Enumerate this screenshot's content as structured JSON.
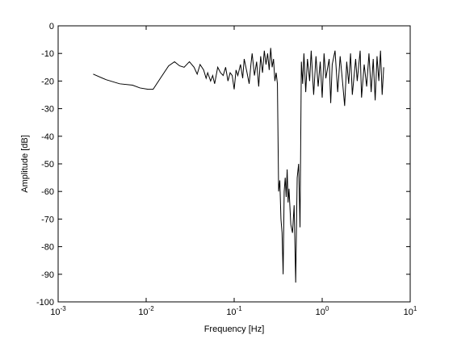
{
  "chart_data": {
    "type": "line",
    "xlabel": "Frequency [Hz]",
    "ylabel": "Amplitude [dB]",
    "xscale": "log",
    "color": "#000000",
    "xlim": [
      0.001,
      10
    ],
    "ylim": [
      -100,
      0
    ],
    "xticks": [
      {
        "value": 0.001,
        "label": "10^-3"
      },
      {
        "value": 0.01,
        "label": "10^-2"
      },
      {
        "value": 0.1,
        "label": "10^-1"
      },
      {
        "value": 1,
        "label": "10^0"
      },
      {
        "value": 10,
        "label": "10^1"
      }
    ],
    "yticks": [
      0,
      -10,
      -20,
      -30,
      -40,
      -50,
      -60,
      -70,
      -80,
      -90,
      -100
    ],
    "x": [
      0.0025,
      0.0035,
      0.005,
      0.007,
      0.0085,
      0.0105,
      0.012,
      0.0145,
      0.018,
      0.021,
      0.024,
      0.027,
      0.031,
      0.035,
      0.038,
      0.041,
      0.045,
      0.048,
      0.05,
      0.054,
      0.057,
      0.06,
      0.065,
      0.07,
      0.075,
      0.08,
      0.085,
      0.09,
      0.095,
      0.1,
      0.105,
      0.11,
      0.118,
      0.125,
      0.13,
      0.14,
      0.148,
      0.155,
      0.16,
      0.17,
      0.18,
      0.19,
      0.2,
      0.21,
      0.22,
      0.23,
      0.24,
      0.25,
      0.26,
      0.27,
      0.28,
      0.29,
      0.3,
      0.31,
      0.32,
      0.33,
      0.34,
      0.35,
      0.36,
      0.37,
      0.38,
      0.39,
      0.4,
      0.41,
      0.42,
      0.44,
      0.46,
      0.48,
      0.5,
      0.52,
      0.54,
      0.56,
      0.58,
      0.6,
      0.62,
      0.65,
      0.68,
      0.72,
      0.75,
      0.8,
      0.85,
      0.9,
      0.95,
      1.0,
      1.05,
      1.1,
      1.2,
      1.25,
      1.3,
      1.4,
      1.5,
      1.6,
      1.7,
      1.8,
      1.9,
      2.0,
      2.1,
      2.2,
      2.4,
      2.5,
      2.7,
      2.8,
      3.0,
      3.2,
      3.4,
      3.6,
      3.8,
      4.0,
      4.2,
      4.4,
      4.6,
      4.8,
      5.0
    ],
    "values": [
      -17.5,
      -19.5,
      -21,
      -21.5,
      -22.5,
      -23,
      -23,
      -19,
      -14.5,
      -13,
      -14.5,
      -15,
      -13,
      -15,
      -17.5,
      -14,
      -16,
      -19,
      -17,
      -20,
      -18,
      -21,
      -15,
      -17,
      -18,
      -15,
      -20,
      -17,
      -18,
      -23,
      -16,
      -18,
      -14,
      -19,
      -12,
      -17,
      -21,
      -14,
      -10,
      -18,
      -13,
      -22,
      -11,
      -17,
      -9,
      -14,
      -10,
      -16,
      -8,
      -15,
      -12,
      -20,
      -17,
      -21,
      -60,
      -56,
      -70,
      -75,
      -90,
      -60,
      -55,
      -62,
      -52,
      -64,
      -59,
      -72,
      -75,
      -65,
      -93,
      -55,
      -50,
      -73,
      -13,
      -21,
      -10,
      -24,
      -12,
      -20,
      -9,
      -25,
      -11,
      -22,
      -13,
      -26,
      -10,
      -19,
      -12,
      -28,
      -14,
      -9,
      -24,
      -11,
      -20,
      -29,
      -13,
      -21,
      -10,
      -25,
      -12,
      -20,
      -9,
      -26,
      -14,
      -22,
      -10,
      -24,
      -12,
      -27,
      -11,
      -20,
      -9,
      -25,
      -15
    ]
  }
}
